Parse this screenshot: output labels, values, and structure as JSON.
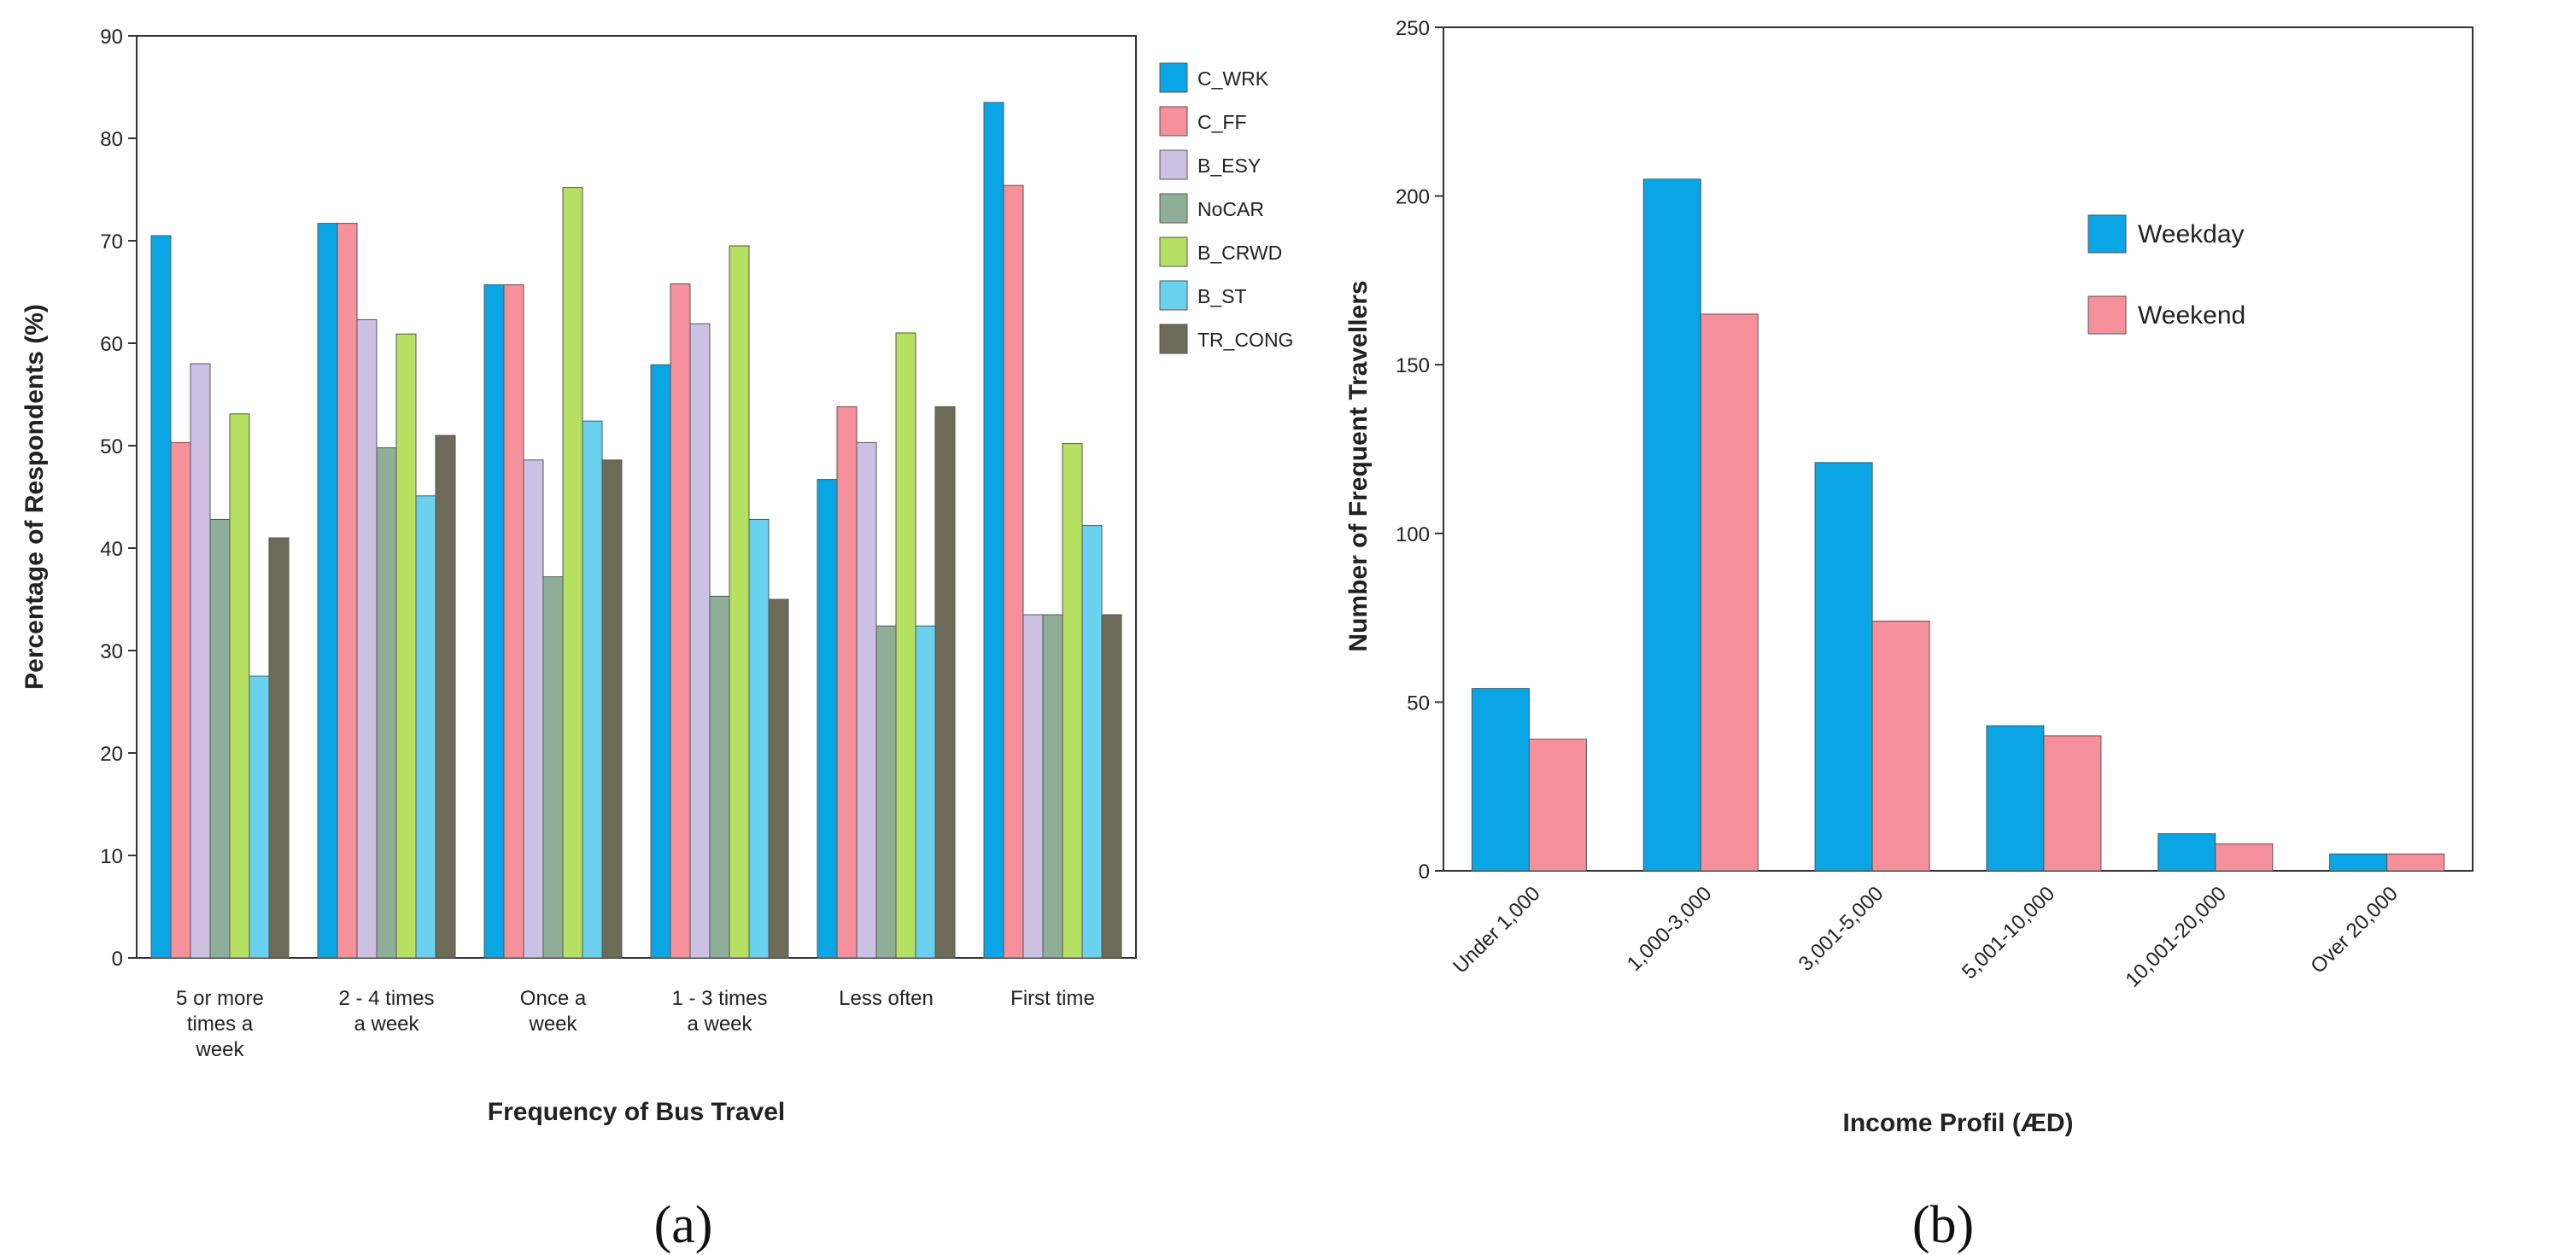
{
  "chart_data": [
    {
      "type": "bar",
      "title": "",
      "xlabel": "Frequency of Bus Travel",
      "ylabel": "Percentage of Respondents (%)",
      "ylim": [
        0,
        90
      ],
      "yticks": [
        "0",
        "10",
        "20",
        "30",
        "40",
        "50",
        "60",
        "70",
        "80",
        "90"
      ],
      "categories": [
        [
          "5 or more",
          "times a",
          "week"
        ],
        [
          "2 - 4 times",
          "a week"
        ],
        [
          "Once a",
          "week"
        ],
        [
          "1 - 3 times",
          "a week"
        ],
        [
          "Less often"
        ],
        [
          "First time"
        ]
      ],
      "legend_position": "right",
      "series": [
        {
          "name": "C_WRK",
          "color": "#0aa5e4",
          "values": [
            70.5,
            71.7,
            65.7,
            57.9,
            46.7,
            83.5
          ]
        },
        {
          "name": "C_FF",
          "color": "#f6909a",
          "values": [
            50.3,
            71.7,
            65.7,
            65.8,
            53.8,
            75.4
          ]
        },
        {
          "name": "B_ESY",
          "color": "#ccc0e3",
          "values": [
            58.0,
            62.3,
            48.6,
            61.9,
            50.3,
            33.5
          ]
        },
        {
          "name": "NoCAR",
          "color": "#8fae98",
          "values": [
            42.8,
            49.8,
            37.2,
            35.3,
            32.4,
            33.5
          ]
        },
        {
          "name": "B_CRWD",
          "color": "#b6e061",
          "values": [
            53.1,
            60.9,
            75.2,
            69.5,
            61.0,
            50.2
          ]
        },
        {
          "name": "B_ST",
          "color": "#6ad2ef",
          "values": [
            27.5,
            45.1,
            52.4,
            42.8,
            32.4,
            42.2
          ]
        },
        {
          "name": "TR_CONG",
          "color": "#6c6b57",
          "values": [
            41.0,
            51.0,
            48.6,
            35.0,
            53.8,
            33.5
          ]
        }
      ],
      "caption": "(a)"
    },
    {
      "type": "bar",
      "title": "",
      "xlabel": "Income Profil  (ÆD)",
      "ylabel": "Number of Frequent Travellers",
      "ylim": [
        0,
        250
      ],
      "yticks": [
        "0",
        "50",
        "100",
        "150",
        "200",
        "250"
      ],
      "categories": [
        "Under 1,000",
        "1,000-3,000",
        "3,001-5,000",
        "5,001-10,000",
        "10,001-20,000",
        "Over 20,000"
      ],
      "legend_position": "top-right",
      "series": [
        {
          "name": "Weekday",
          "color": "#0aa5e4",
          "values": [
            54,
            205,
            121,
            43,
            11,
            5
          ]
        },
        {
          "name": "Weekend",
          "color": "#f6909a",
          "values": [
            39,
            165,
            74,
            40,
            8,
            5
          ]
        }
      ],
      "caption": "(b)"
    }
  ]
}
